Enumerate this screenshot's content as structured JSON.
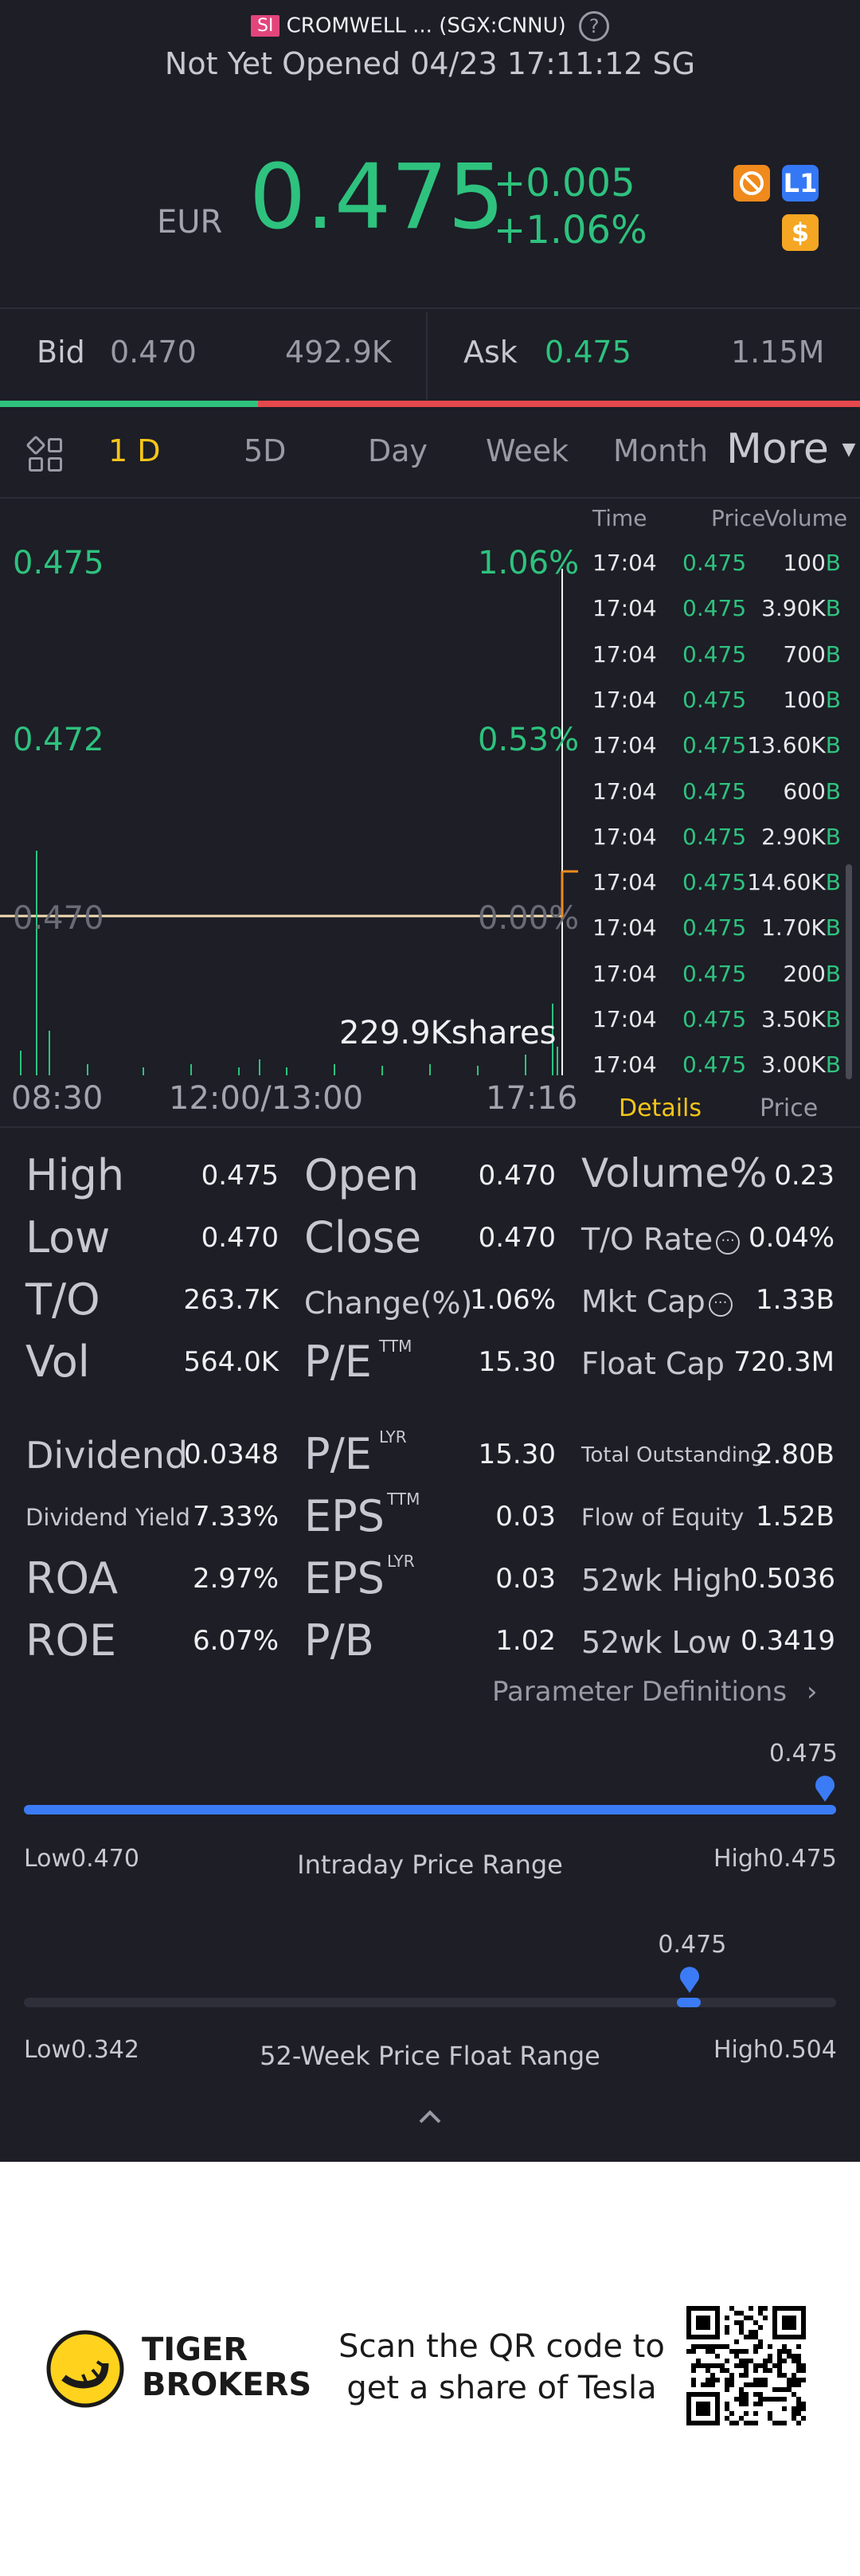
{
  "header": {
    "badge": "SI",
    "title": "CROMWELL ... (SGX:CNNU)",
    "status": "Not Yet Opened 04/23 17:11:12 SG",
    "help_icon": "question-circle-icon"
  },
  "quote": {
    "currency": "EUR",
    "price": "0.475",
    "change": "+0.005",
    "change_pct": "+1.06%",
    "icons": [
      "no-short-icon",
      "level1-icon",
      "dollar-icon"
    ],
    "l1_text": "L1",
    "dollar_text": "$",
    "up_color": "#2ec27e",
    "down_color": "#e5484d"
  },
  "bidask": {
    "bid_label": "Bid",
    "bid_price": "0.470",
    "bid_size": "492.9K",
    "ask_label": "Ask",
    "ask_price": "0.475",
    "ask_size": "1.15M",
    "bid_share": 0.3
  },
  "tabs": {
    "items": [
      "1 D",
      "5D",
      "Day",
      "Week",
      "Month"
    ],
    "active": "1 D",
    "more": "More"
  },
  "chart": {
    "price_labels": [
      "0.475",
      "0.472",
      "0.470"
    ],
    "pct_labels": [
      "1.06%",
      "0.53%",
      "0.00%"
    ],
    "volume_label": "229.9Kshares",
    "time_labels": [
      "08:30",
      "12:00/13:00",
      "17:16"
    ]
  },
  "ticks": {
    "headers": {
      "time": "Time",
      "price": "Price",
      "volume": "Volume"
    },
    "rows": [
      {
        "time": "17:04",
        "price": "0.475",
        "volume": "100",
        "flag": "B"
      },
      {
        "time": "17:04",
        "price": "0.475",
        "volume": "3.90K",
        "flag": "B"
      },
      {
        "time": "17:04",
        "price": "0.475",
        "volume": "700",
        "flag": "B"
      },
      {
        "time": "17:04",
        "price": "0.475",
        "volume": "100",
        "flag": "B"
      },
      {
        "time": "17:04",
        "price": "0.475",
        "volume": "13.60K",
        "flag": "B"
      },
      {
        "time": "17:04",
        "price": "0.475",
        "volume": "600",
        "flag": "B"
      },
      {
        "time": "17:04",
        "price": "0.475",
        "volume": "2.90K",
        "flag": "B"
      },
      {
        "time": "17:04",
        "price": "0.475",
        "volume": "14.60K",
        "flag": "B"
      },
      {
        "time": "17:04",
        "price": "0.475",
        "volume": "1.70K",
        "flag": "B"
      },
      {
        "time": "17:04",
        "price": "0.475",
        "volume": "200",
        "flag": "B"
      },
      {
        "time": "17:04",
        "price": "0.475",
        "volume": "3.50K",
        "flag": "B"
      },
      {
        "time": "17:04",
        "price": "0.475",
        "volume": "3.00K",
        "flag": "B"
      }
    ],
    "sub_tabs": [
      "Details",
      "Price"
    ],
    "active_sub_tab": "Details"
  },
  "stats": {
    "high": {
      "label": "High",
      "value": "0.475"
    },
    "low": {
      "label": "Low",
      "value": "0.470"
    },
    "to": {
      "label": "T/O",
      "value": "263.7K"
    },
    "vol": {
      "label": "Vol",
      "value": "564.0K"
    },
    "open": {
      "label": "Open",
      "value": "0.470"
    },
    "close": {
      "label": "Close",
      "value": "0.470"
    },
    "change_pct": {
      "label": "Change(%)",
      "value": "1.06%"
    },
    "pe_ttm": {
      "label": "P/E",
      "sup": "TTM",
      "value": "15.30"
    },
    "volume_pct": {
      "label": "Volume%",
      "value": "0.23"
    },
    "to_rate": {
      "label": "T/O Rate",
      "value": "0.04%"
    },
    "mkt_cap": {
      "label": "Mkt Cap",
      "value": "1.33B"
    },
    "float_cap": {
      "label": "Float Cap",
      "value": "720.3M"
    },
    "dividend": {
      "label": "Dividend",
      "value": "0.0348"
    },
    "dividend_yield": {
      "label": "Dividend Yield",
      "value": "7.33%"
    },
    "roa": {
      "label": "ROA",
      "value": "2.97%"
    },
    "roe": {
      "label": "ROE",
      "value": "6.07%"
    },
    "pe_lyr": {
      "label": "P/E",
      "sup": "LYR",
      "value": "15.30"
    },
    "eps_ttm": {
      "label": "EPS",
      "sup": "TTM",
      "value": "0.03"
    },
    "eps_lyr": {
      "label": "EPS",
      "sup": "LYR",
      "value": "0.03"
    },
    "pb": {
      "label": "P/B",
      "value": "1.02"
    },
    "total_outstanding": {
      "label": "Total Outstanding",
      "value": "2.80B"
    },
    "flow_of_equity": {
      "label": "Flow of Equity",
      "value": "1.52B"
    },
    "wk52_high": {
      "label": "52wk High",
      "value": "0.5036"
    },
    "wk52_low": {
      "label": "52wk Low",
      "value": "0.3419"
    },
    "param_def": "Parameter Definitions"
  },
  "intraday_range": {
    "title": "Intraday Price Range",
    "marker_value": "0.475",
    "low_label": "Low0.470",
    "high_label": "High0.475",
    "position": 1.0,
    "color": "#3b7bf5"
  },
  "week52_range": {
    "title": "52-Week Price Float Range",
    "marker_value": "0.475",
    "low_label": "Low0.342",
    "high_label": "High0.504",
    "position": 0.82
  },
  "footer": {
    "brand_line1": "TIGER",
    "brand_line2": "BROKERS",
    "slogan_line1": "Scan the QR code to",
    "slogan_line2": "get a share of Tesla",
    "qr_icon": "qr-code-icon"
  }
}
